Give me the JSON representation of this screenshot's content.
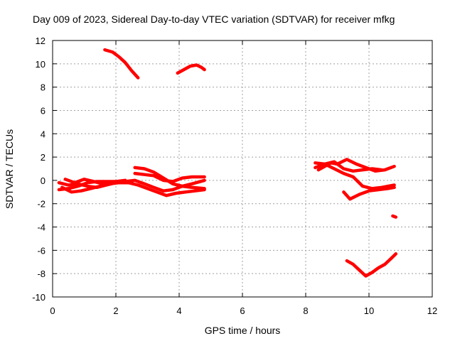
{
  "chart_data": {
    "type": "scatter",
    "title": "Day 009 of 2023, Sidereal Day-to-day VTEC variation (SDTVAR) for receiver mfkg",
    "xlabel": "GPS time / hours",
    "ylabel": "SDTVAR / TECUs",
    "xlim": [
      0,
      12
    ],
    "ylim": [
      -10,
      12
    ],
    "xticks": [
      0,
      2,
      4,
      6,
      8,
      10,
      12
    ],
    "yticks": [
      -10,
      -8,
      -6,
      -4,
      -2,
      0,
      2,
      4,
      6,
      8,
      10,
      12
    ],
    "grid": true,
    "color": "#ff0000",
    "tracks": [
      [
        [
          1.65,
          11.2
        ],
        [
          1.9,
          11.0
        ],
        [
          2.1,
          10.6
        ],
        [
          2.3,
          10.1
        ],
        [
          2.5,
          9.4
        ],
        [
          2.7,
          8.8
        ]
      ],
      [
        [
          3.95,
          9.2
        ],
        [
          4.15,
          9.5
        ],
        [
          4.35,
          9.8
        ],
        [
          4.55,
          9.9
        ],
        [
          4.7,
          9.7
        ],
        [
          4.8,
          9.5
        ]
      ],
      [
        [
          0.2,
          -0.2
        ],
        [
          0.5,
          -0.4
        ],
        [
          0.8,
          -0.3
        ],
        [
          1.1,
          -0.5
        ],
        [
          1.4,
          -0.6
        ],
        [
          1.7,
          -0.4
        ],
        [
          2.0,
          -0.2
        ],
        [
          2.3,
          -0.1
        ],
        [
          2.6,
          0.0
        ],
        [
          2.9,
          -0.3
        ],
        [
          3.2,
          -0.6
        ],
        [
          3.5,
          -0.9
        ],
        [
          3.8,
          -0.8
        ],
        [
          4.1,
          -0.5
        ],
        [
          4.4,
          -0.3
        ],
        [
          4.8,
          0.0
        ]
      ],
      [
        [
          0.2,
          -0.8
        ],
        [
          0.5,
          -0.7
        ],
        [
          0.8,
          -0.5
        ],
        [
          1.1,
          -0.2
        ],
        [
          1.4,
          -0.1
        ],
        [
          1.7,
          -0.1
        ],
        [
          2.0,
          -0.1
        ],
        [
          2.3,
          0.0
        ]
      ],
      [
        [
          0.3,
          -0.6
        ],
        [
          0.6,
          -1.0
        ],
        [
          0.9,
          -0.9
        ],
        [
          1.2,
          -0.7
        ],
        [
          1.5,
          -0.5
        ],
        [
          1.8,
          -0.3
        ],
        [
          2.1,
          -0.2
        ],
        [
          2.4,
          -0.2
        ],
        [
          2.7,
          -0.4
        ],
        [
          3.0,
          -0.7
        ],
        [
          3.3,
          -1.0
        ],
        [
          3.6,
          -1.3
        ],
        [
          3.9,
          -1.1
        ],
        [
          4.2,
          -1.0
        ],
        [
          4.5,
          -0.9
        ],
        [
          4.8,
          -0.8
        ]
      ],
      [
        [
          0.4,
          0.1
        ],
        [
          0.7,
          -0.2
        ],
        [
          1.0,
          0.1
        ],
        [
          1.3,
          -0.1
        ],
        [
          1.6,
          -0.3
        ],
        [
          1.9,
          -0.2
        ]
      ],
      [
        [
          2.6,
          1.1
        ],
        [
          2.9,
          1.0
        ],
        [
          3.2,
          0.7
        ],
        [
          3.5,
          0.2
        ],
        [
          3.8,
          -0.3
        ],
        [
          4.1,
          -0.5
        ],
        [
          4.4,
          -0.6
        ],
        [
          4.8,
          -0.7
        ]
      ],
      [
        [
          2.6,
          0.6
        ],
        [
          2.9,
          0.5
        ],
        [
          3.2,
          0.4
        ],
        [
          3.5,
          0.0
        ],
        [
          3.8,
          -0.1
        ],
        [
          4.1,
          0.2
        ],
        [
          4.4,
          0.3
        ],
        [
          4.8,
          0.3
        ]
      ],
      [
        [
          8.3,
          1.5
        ],
        [
          8.6,
          1.4
        ],
        [
          8.9,
          1.6
        ],
        [
          9.2,
          1.0
        ],
        [
          9.5,
          0.8
        ],
        [
          9.8,
          0.9
        ],
        [
          10.1,
          1.0
        ],
        [
          10.4,
          0.9
        ]
      ],
      [
        [
          8.3,
          1.1
        ],
        [
          8.6,
          1.4
        ],
        [
          8.9,
          1.0
        ],
        [
          9.2,
          0.6
        ],
        [
          9.5,
          0.3
        ],
        [
          9.8,
          -0.5
        ],
        [
          10.1,
          -0.7
        ],
        [
          10.4,
          -0.6
        ],
        [
          10.8,
          -0.4
        ]
      ],
      [
        [
          8.4,
          0.9
        ],
        [
          8.8,
          1.5
        ],
        [
          9.0,
          1.4
        ],
        [
          9.3,
          1.8
        ],
        [
          9.6,
          1.4
        ],
        [
          9.9,
          1.1
        ],
        [
          10.2,
          0.8
        ],
        [
          10.5,
          0.9
        ],
        [
          10.8,
          1.2
        ]
      ],
      [
        [
          9.2,
          -1.0
        ],
        [
          9.4,
          -1.6
        ],
        [
          9.7,
          -1.2
        ],
        [
          10.0,
          -0.9
        ],
        [
          10.3,
          -0.8
        ],
        [
          10.6,
          -0.7
        ],
        [
          10.8,
          -0.6
        ]
      ],
      [
        [
          9.3,
          -6.9
        ],
        [
          9.5,
          -7.2
        ],
        [
          9.7,
          -7.7
        ],
        [
          9.9,
          -8.2
        ],
        [
          10.1,
          -7.9
        ],
        [
          10.3,
          -7.5
        ],
        [
          10.5,
          -7.2
        ],
        [
          10.7,
          -6.7
        ],
        [
          10.85,
          -6.3
        ]
      ],
      [
        [
          10.75,
          -3.05
        ],
        [
          10.85,
          -3.15
        ]
      ]
    ]
  }
}
